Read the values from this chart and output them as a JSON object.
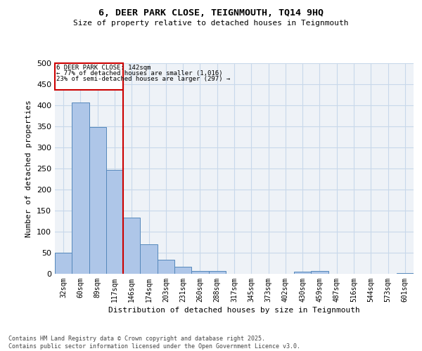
{
  "title": "6, DEER PARK CLOSE, TEIGNMOUTH, TQ14 9HQ",
  "subtitle": "Size of property relative to detached houses in Teignmouth",
  "xlabel": "Distribution of detached houses by size in Teignmouth",
  "ylabel": "Number of detached properties",
  "categories": [
    "32sqm",
    "60sqm",
    "89sqm",
    "117sqm",
    "146sqm",
    "174sqm",
    "203sqm",
    "231sqm",
    "260sqm",
    "288sqm",
    "317sqm",
    "345sqm",
    "373sqm",
    "402sqm",
    "430sqm",
    "459sqm",
    "487sqm",
    "516sqm",
    "544sqm",
    "573sqm",
    "601sqm"
  ],
  "values": [
    50,
    407,
    348,
    246,
    133,
    70,
    33,
    16,
    7,
    7,
    0,
    0,
    0,
    0,
    5,
    7,
    0,
    0,
    0,
    0,
    2
  ],
  "bar_color": "#aec6e8",
  "bar_edge_color": "#5588bb",
  "ref_line_x": 3.5,
  "annotation_text_line1": "6 DEER PARK CLOSE: 142sqm",
  "annotation_text_line2": "← 77% of detached houses are smaller (1,016)",
  "annotation_text_line3": "23% of semi-detached houses are larger (297) →",
  "annotation_box_color": "#cc0000",
  "ylim": [
    0,
    500
  ],
  "yticks": [
    0,
    50,
    100,
    150,
    200,
    250,
    300,
    350,
    400,
    450,
    500
  ],
  "grid_color": "#c8d8ea",
  "background_color": "#eef2f7",
  "footer_line1": "Contains HM Land Registry data © Crown copyright and database right 2025.",
  "footer_line2": "Contains public sector information licensed under the Open Government Licence v3.0."
}
